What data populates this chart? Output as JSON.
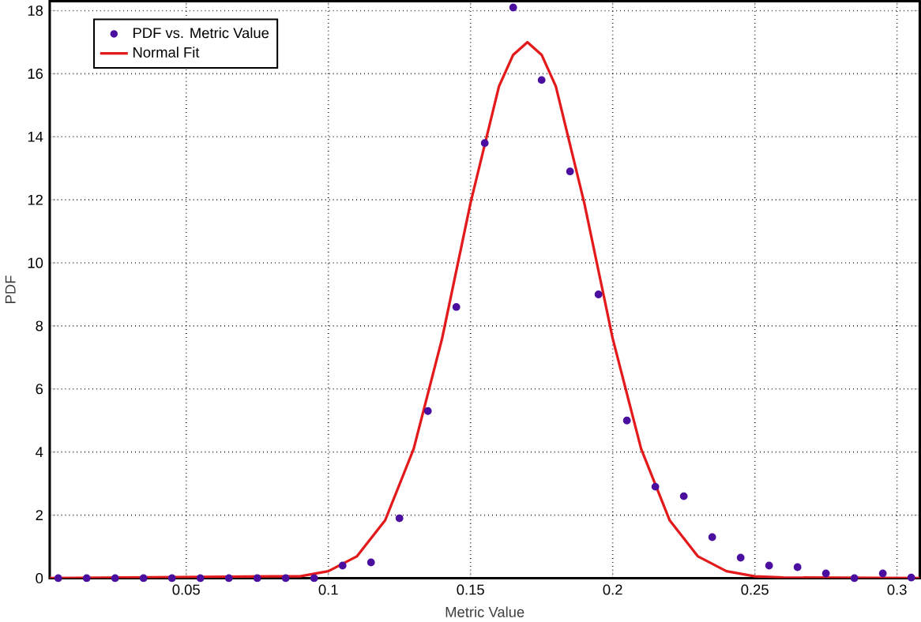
{
  "chart_data": {
    "type": "scatter",
    "xlabel": "Metric Value",
    "ylabel": "PDF",
    "xlim": [
      0.002,
      0.308
    ],
    "ylim": [
      0,
      18.3
    ],
    "xticks": [
      0.05,
      0.1,
      0.15,
      0.2,
      0.25,
      0.3
    ],
    "yticks": [
      0,
      2,
      4,
      6,
      8,
      10,
      12,
      14,
      16,
      18
    ],
    "grid": true,
    "legend": "top left",
    "series": [
      {
        "name": "PDF vs. Metric Value",
        "marker": "circle",
        "color": "#4b0fa0",
        "x": [
          0.005,
          0.015,
          0.025,
          0.035,
          0.045,
          0.055,
          0.065,
          0.075,
          0.085,
          0.095,
          0.105,
          0.115,
          0.125,
          0.135,
          0.145,
          0.155,
          0.165,
          0.175,
          0.185,
          0.195,
          0.205,
          0.215,
          0.225,
          0.235,
          0.245,
          0.255,
          0.265,
          0.275,
          0.285,
          0.295,
          0.305
        ],
        "values": [
          0,
          0,
          0,
          0,
          0,
          0,
          0,
          0,
          0,
          0,
          0.4,
          0.5,
          1.9,
          5.3,
          8.6,
          13.8,
          18.1,
          15.8,
          12.9,
          9.0,
          5.0,
          2.9,
          2.6,
          1.3,
          0.65,
          0.4,
          0.35,
          0.15,
          0,
          0.15,
          0.02
        ]
      },
      {
        "name": "Normal Fit",
        "type": "line",
        "marker": "none",
        "line_style": "solid",
        "color": "#e31a1c",
        "x": [
          0.002,
          0.08,
          0.09,
          0.1,
          0.11,
          0.12,
          0.13,
          0.14,
          0.15,
          0.16,
          0.165,
          0.17,
          0.175,
          0.18,
          0.19,
          0.2,
          0.21,
          0.22,
          0.23,
          0.24,
          0.25,
          0.26,
          0.308
        ],
        "values": [
          0,
          0.06,
          0.06,
          0.22,
          0.69,
          1.84,
          4.1,
          7.6,
          11.9,
          15.6,
          16.6,
          17.0,
          16.6,
          15.6,
          11.9,
          7.6,
          4.1,
          1.84,
          0.69,
          0.22,
          0.06,
          0.02,
          0
        ]
      }
    ]
  }
}
